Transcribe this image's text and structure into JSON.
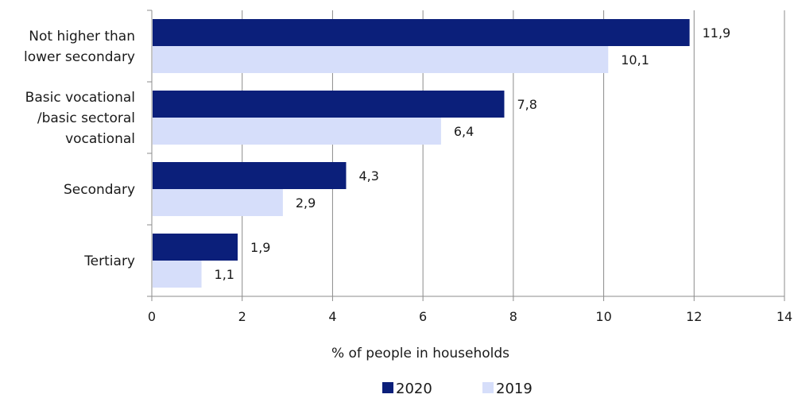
{
  "chart_data": {
    "type": "bar",
    "orientation": "horizontal",
    "categories": [
      [
        "Not higher than",
        "lower secondary"
      ],
      [
        "Basic vocational",
        "/basic sectoral",
        "vocational"
      ],
      [
        "Secondary"
      ],
      [
        "Tertiary"
      ]
    ],
    "series": [
      {
        "name": "2020",
        "color": "#0b1f7a",
        "values": [
          11.9,
          7.8,
          4.3,
          1.9
        ],
        "labels": [
          "11,9",
          "7,8",
          "4,3",
          "1,9"
        ]
      },
      {
        "name": "2019",
        "color": "#d6defa",
        "values": [
          10.1,
          6.4,
          2.9,
          1.1
        ],
        "labels": [
          "10,1",
          "6,4",
          "2,9",
          "1,1"
        ]
      }
    ],
    "xlabel": "% of people in households",
    "xlim": [
      0,
      14
    ],
    "xticks": [
      0,
      2,
      4,
      6,
      8,
      10,
      12,
      14
    ],
    "grid": "vertical",
    "legend_position": "bottom"
  }
}
